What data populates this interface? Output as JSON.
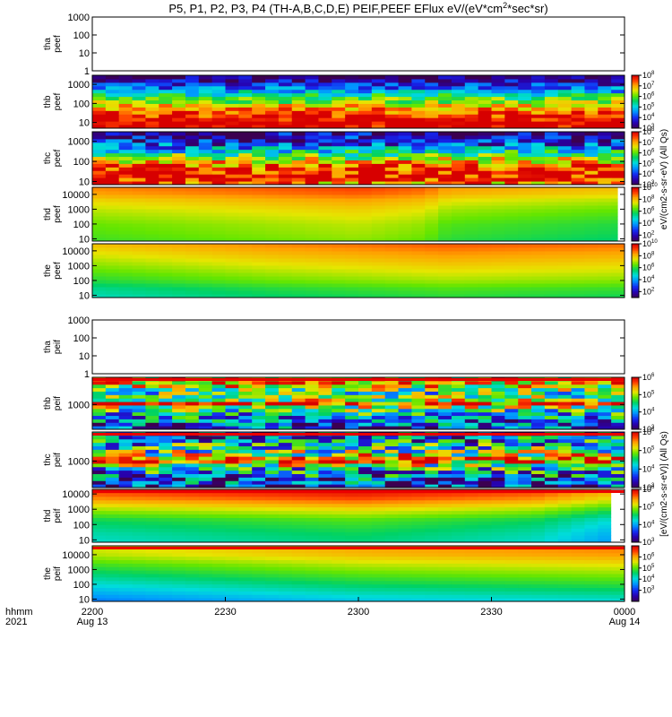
{
  "title": "P5, P1, P2, P3, P4 (TH-A,B,C,D,E) PEIF,PEEF EFlux eV/(eV*cm2*sec*sr)",
  "title_parts": {
    "main": "P5, P1, P2, P3, P4 (TH-A,B,C,D,E) PEIF,PEEF EFlux eV/(eV*cm",
    "sup": "2",
    "tail": "*sec*sr)"
  },
  "time_axis": {
    "label_top": "hhmm",
    "label_bottom": "2021",
    "ticks": [
      {
        "t": 0,
        "label": "2200",
        "sub": "Aug 13"
      },
      {
        "t": 30,
        "label": "2230",
        "sub": ""
      },
      {
        "t": 60,
        "label": "2300",
        "sub": ""
      },
      {
        "t": 90,
        "label": "2330",
        "sub": ""
      },
      {
        "t": 120,
        "label": "0000",
        "sub": "Aug 14"
      }
    ],
    "range_minutes": [
      0,
      120
    ]
  },
  "colorbar_unit_electron": "eV/(cm2-s-sr-eV) (All Qs)",
  "colorbar_unit_ion": "[eV/(cm2-s-sr-eV)] (All Qs)",
  "colors": {
    "frame": "#000000",
    "background": "#ffffff"
  },
  "chart_data": [
    {
      "type": "heatmap",
      "panel": "tha peef",
      "label_top": "tha",
      "label_bottom": "peef",
      "yscale": "log",
      "ylim": [
        1,
        1000
      ],
      "yticks": [
        "1",
        "10",
        "100",
        "1000"
      ],
      "status": "no data",
      "colorbar": null,
      "band": []
    },
    {
      "type": "heatmap",
      "panel": "thb peef",
      "label_top": "thb",
      "label_bottom": "peef",
      "yscale": "log",
      "ylim": [
        5,
        3000
      ],
      "yticks": [
        "10",
        "100",
        "1000"
      ],
      "colorbar": {
        "exp_min": 3,
        "exp_max": 8,
        "ticks": [
          3,
          4,
          5,
          6,
          7,
          8
        ]
      },
      "band": [
        [
          5,
          8.0
        ],
        [
          8,
          8.2
        ],
        [
          15,
          8.0
        ],
        [
          40,
          7.4
        ],
        [
          100,
          6.5
        ],
        [
          200,
          5.8
        ],
        [
          400,
          5.0
        ],
        [
          700,
          4.3
        ],
        [
          1200,
          3.8
        ],
        [
          2000,
          3.3
        ],
        [
          3000,
          3.0
        ]
      ],
      "speckle": 0.25
    },
    {
      "type": "heatmap",
      "panel": "thc peef",
      "label_top": "thc",
      "label_bottom": "peef",
      "yscale": "log",
      "ylim": [
        7,
        3000
      ],
      "yticks": [
        "10",
        "100",
        "1000"
      ],
      "colorbar": {
        "exp_min": 3,
        "exp_max": 8,
        "ticks": [
          3,
          4,
          5,
          6,
          7,
          8
        ]
      },
      "band": [
        [
          7,
          6.5
        ],
        [
          10,
          7.8
        ],
        [
          20,
          8.0
        ],
        [
          50,
          7.6
        ],
        [
          100,
          6.8
        ],
        [
          200,
          6.0
        ],
        [
          400,
          5.0
        ],
        [
          800,
          4.0
        ],
        [
          1500,
          3.6
        ],
        [
          3000,
          3.3
        ]
      ],
      "speckle": 0.35
    },
    {
      "type": "heatmap",
      "panel": "thd peef",
      "label_top": "thd",
      "label_bottom": "peef",
      "yscale": "log",
      "ylim": [
        7,
        30000
      ],
      "yticks": [
        "10",
        "100",
        "1000",
        "10000"
      ],
      "colorbar": {
        "exp_min": 1,
        "exp_max": 10,
        "ticks": [
          2,
          4,
          6,
          8,
          10
        ]
      },
      "band": [
        [
          7,
          6.2
        ],
        [
          20,
          6.4
        ],
        [
          100,
          6.6
        ],
        [
          1000,
          7.2
        ],
        [
          5000,
          7.8
        ],
        [
          10000,
          8.3
        ],
        [
          30000,
          8.6
        ]
      ],
      "trend": [
        [
          0,
          0.0
        ],
        [
          60,
          0.6
        ],
        [
          75,
          0.3
        ],
        [
          80,
          -0.2
        ],
        [
          118,
          -0.6
        ]
      ],
      "gap_after": 118.5
    },
    {
      "type": "heatmap",
      "panel": "the peef",
      "label_top": "the",
      "label_bottom": "peef",
      "yscale": "log",
      "ylim": [
        7,
        30000
      ],
      "yticks": [
        "10",
        "100",
        "1000",
        "10000"
      ],
      "colorbar": {
        "exp_min": 1,
        "exp_max": 10,
        "ticks": [
          2,
          4,
          6,
          8,
          10
        ]
      },
      "band": [
        [
          7,
          5.4
        ],
        [
          30,
          5.8
        ],
        [
          100,
          6.4
        ],
        [
          1000,
          7.2
        ],
        [
          10000,
          8.0
        ],
        [
          30000,
          8.4
        ]
      ],
      "trend": [
        [
          0,
          -0.4
        ],
        [
          40,
          0.2
        ],
        [
          80,
          0.6
        ],
        [
          120,
          0.4
        ]
      ]
    },
    {
      "type": "heatmap",
      "panel": "tha peif",
      "label_top": "tha",
      "label_bottom": "peif",
      "yscale": "log",
      "ylim": [
        1,
        1000
      ],
      "yticks": [
        "1",
        "10",
        "100",
        "1000"
      ],
      "status": "no data",
      "colorbar": null,
      "band": []
    },
    {
      "type": "heatmap",
      "panel": "thb peif",
      "label_top": "thb",
      "label_bottom": "peif",
      "yscale": "log",
      "ylim": [
        150,
        8000
      ],
      "yticks": [
        "1000"
      ],
      "colorbar": {
        "exp_min": 3,
        "exp_max": 6,
        "ticks": [
          3,
          4,
          5,
          6
        ]
      },
      "band": [
        [
          150,
          3.6
        ],
        [
          300,
          3.9
        ],
        [
          600,
          4.4
        ],
        [
          900,
          5.0
        ],
        [
          1100,
          5.8
        ],
        [
          1500,
          4.8
        ],
        [
          2500,
          4.5
        ],
        [
          4000,
          5.0
        ],
        [
          6000,
          5.6
        ],
        [
          8000,
          5.0
        ]
      ],
      "speckle": 0.3,
      "top_stripe": true
    },
    {
      "type": "heatmap",
      "panel": "thc peif",
      "label_top": "thc",
      "label_bottom": "peif",
      "yscale": "log",
      "ylim": [
        150,
        8000
      ],
      "yticks": [
        "1000"
      ],
      "colorbar": {
        "exp_min": 3,
        "exp_max": 6,
        "ticks": [
          3,
          4,
          5,
          6
        ]
      },
      "band": [
        [
          150,
          3.4
        ],
        [
          300,
          3.7
        ],
        [
          600,
          4.3
        ],
        [
          900,
          5.2
        ],
        [
          1100,
          6.0
        ],
        [
          1500,
          5.0
        ],
        [
          2500,
          4.4
        ],
        [
          4000,
          4.1
        ],
        [
          8000,
          3.6
        ]
      ],
      "speckle": 0.35,
      "top_stripe": true
    },
    {
      "type": "heatmap",
      "panel": "thd peif",
      "label_top": "thd",
      "label_bottom": "peif",
      "yscale": "log",
      "ylim": [
        7,
        20000
      ],
      "yticks": [
        "10",
        "100",
        "1000",
        "10000"
      ],
      "colorbar": {
        "exp_min": 3,
        "exp_max": 6,
        "ticks": [
          3,
          4,
          5,
          6
        ]
      },
      "band": [
        [
          7,
          4.3
        ],
        [
          30,
          4.4
        ],
        [
          200,
          4.6
        ],
        [
          1000,
          5.0
        ],
        [
          5000,
          5.5
        ],
        [
          20000,
          5.8
        ]
      ],
      "trend": [
        [
          0,
          0.0
        ],
        [
          60,
          0.2
        ],
        [
          100,
          0.0
        ],
        [
          116,
          -0.3
        ]
      ],
      "gap_after": 117,
      "top_stripe": true
    },
    {
      "type": "heatmap",
      "panel": "the peif",
      "label_top": "the",
      "label_bottom": "peif",
      "yscale": "log",
      "ylim": [
        7,
        40000
      ],
      "yticks": [
        "10",
        "100",
        "1000",
        "10000"
      ],
      "colorbar": {
        "exp_min": 2,
        "exp_max": 7,
        "ticks": [
          3,
          4,
          5,
          6
        ]
      },
      "band": [
        [
          7,
          3.8
        ],
        [
          30,
          4.2
        ],
        [
          200,
          4.7
        ],
        [
          2000,
          5.3
        ],
        [
          10000,
          5.8
        ],
        [
          40000,
          6.0
        ]
      ],
      "trend": [
        [
          0,
          -0.4
        ],
        [
          60,
          0.1
        ],
        [
          120,
          0.3
        ]
      ],
      "top_stripe": true
    }
  ]
}
